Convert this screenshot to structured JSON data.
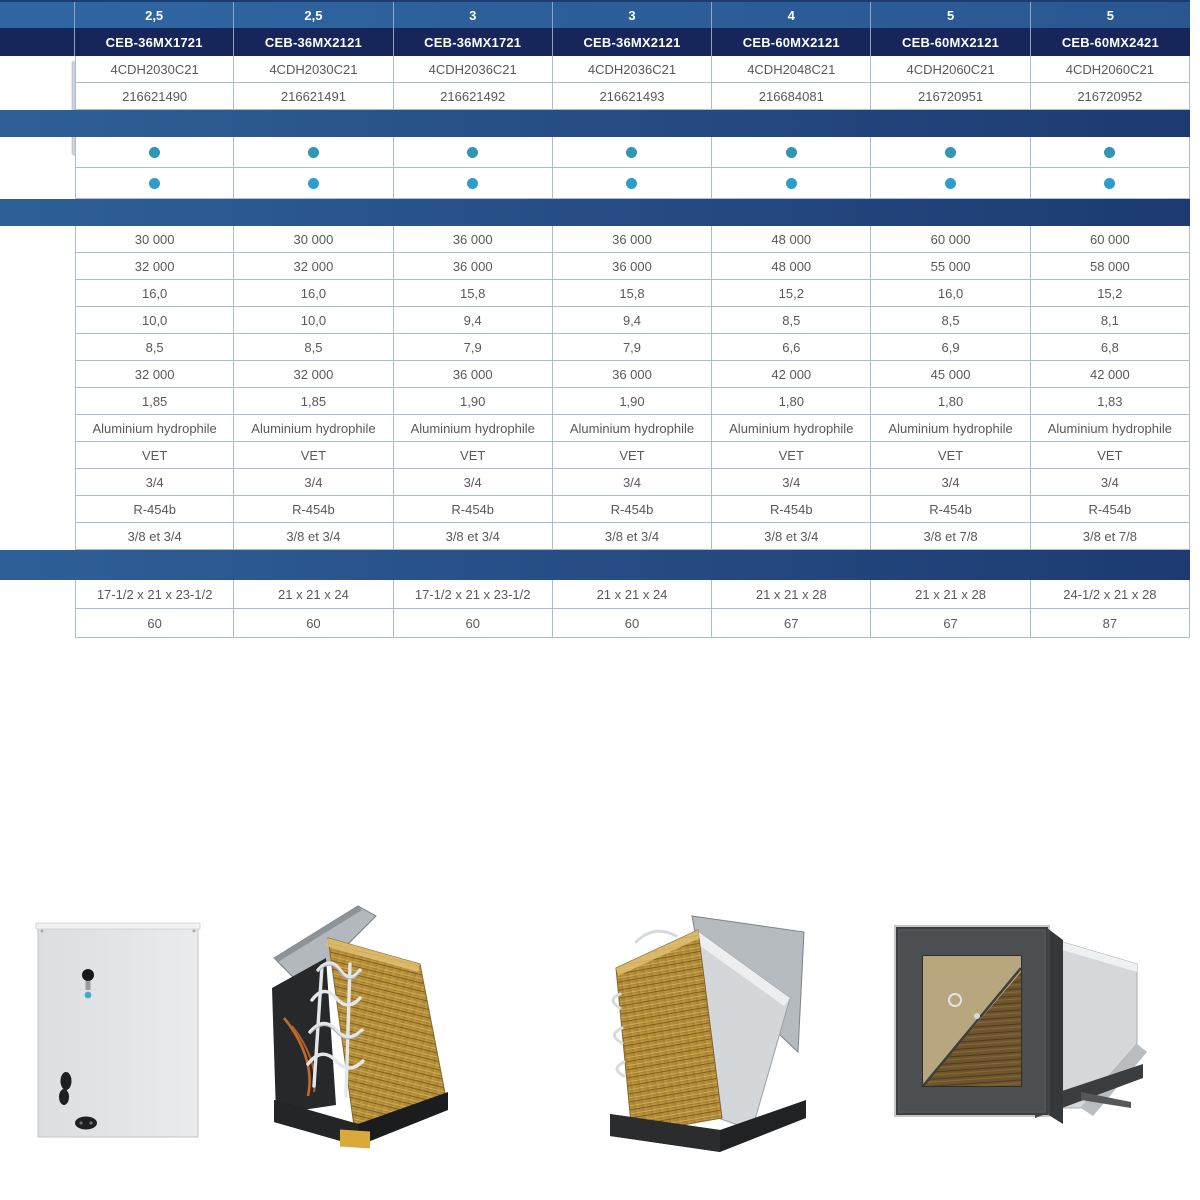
{
  "page": {
    "type": "product-spec-sheet",
    "background": "#ffffff"
  },
  "brand": {
    "logo_icon": "snowflake-burst-icon",
    "colors": {
      "yellow_green": "#d4e96a",
      "green": "#85da68",
      "teal": "#2fbcbe"
    }
  },
  "images": {
    "hero": "cased-evaporator-coil-photo",
    "gallery": [
      "cabinet-front-view-photo",
      "uncased-coil-angle-right-photo",
      "uncased-coil-angle-left-photo",
      "insulated-cabinet-cutaway-photo"
    ]
  },
  "table": {
    "accent_colors": {
      "tonnage_row_bg": "#2c5d96",
      "model_row_bg": "#16265b",
      "section_band": "#24518c",
      "grid_line": "#a9bdd8",
      "dot_row1": "#2e97b5",
      "dot_row2": "#2d9ecb",
      "text": "#57595c"
    },
    "header": {
      "tonnages": [
        "2,5",
        "2,5",
        "3",
        "3",
        "4",
        "5",
        "5"
      ],
      "models": [
        "CEB-36MX1721",
        "CEB-36MX2121",
        "CEB-36MX1721",
        "CEB-36MX2121",
        "CEB-60MX2121",
        "CEB-60MX2121",
        "CEB-60MX2421"
      ],
      "part_numbers": [
        "4CDH2030C21",
        "4CDH2030C21",
        "4CDH2036C21",
        "4CDH2036C21",
        "4CDH2048C21",
        "4CDH2060C21",
        "4CDH2060C21"
      ],
      "references": [
        "216621490",
        "216621491",
        "216621492",
        "216621493",
        "216684081",
        "216720951",
        "216720952"
      ]
    },
    "feature_rows": [
      {
        "dots": [
          true,
          true,
          true,
          true,
          true,
          true,
          true
        ]
      },
      {
        "dots": [
          true,
          true,
          true,
          true,
          true,
          true,
          true
        ]
      }
    ],
    "data_rows": [
      {
        "values": [
          "30 000",
          "30 000",
          "36 000",
          "36 000",
          "48 000",
          "60 000",
          "60 000"
        ]
      },
      {
        "values": [
          "32 000",
          "32 000",
          "36 000",
          "36 000",
          "48 000",
          "55 000",
          "58 000"
        ]
      },
      {
        "values": [
          "16,0",
          "16,0",
          "15,8",
          "15,8",
          "15,2",
          "16,0",
          "15,2"
        ]
      },
      {
        "values": [
          "10,0",
          "10,0",
          "9,4",
          "9,4",
          "8,5",
          "8,5",
          "8,1"
        ]
      },
      {
        "values": [
          "8,5",
          "8,5",
          "7,9",
          "7,9",
          "6,6",
          "6,9",
          "6,8"
        ]
      },
      {
        "values": [
          "32 000",
          "32 000",
          "36 000",
          "36 000",
          "42 000",
          "45 000",
          "42 000"
        ]
      },
      {
        "values": [
          "1,85",
          "1,85",
          "1,90",
          "1,90",
          "1,80",
          "1,80",
          "1,83"
        ]
      },
      {
        "values": [
          "Aluminium hydrophile",
          "Aluminium hydrophile",
          "Aluminium hydrophile",
          "Aluminium hydrophile",
          "Aluminium hydrophile",
          "Aluminium hydrophile",
          "Aluminium hydrophile"
        ]
      },
      {
        "values": [
          "VET",
          "VET",
          "VET",
          "VET",
          "VET",
          "VET",
          "VET"
        ]
      },
      {
        "values": [
          "3/4",
          "3/4",
          "3/4",
          "3/4",
          "3/4",
          "3/4",
          "3/4"
        ]
      },
      {
        "values": [
          "R-454b",
          "R-454b",
          "R-454b",
          "R-454b",
          "R-454b",
          "R-454b",
          "R-454b"
        ]
      },
      {
        "values": [
          "3/8 et 3/4",
          "3/8 et 3/4",
          "3/8 et 3/4",
          "3/8 et 3/4",
          "3/8 et 3/4",
          "3/8 et 7/8",
          "3/8 et 7/8"
        ]
      }
    ],
    "dimensions": {
      "values": [
        "17-1/2 x 21 x 23-1/2",
        "21 x 21 x 24",
        "17-1/2 x 21 x 23-1/2",
        "21 x 21 x 24",
        "21 x 21 x 28",
        "21 x 21 x 28",
        "24-1/2 x 21 x 28"
      ]
    },
    "weights": {
      "values": [
        "60",
        "60",
        "60",
        "60",
        "67",
        "67",
        "87"
      ]
    }
  }
}
